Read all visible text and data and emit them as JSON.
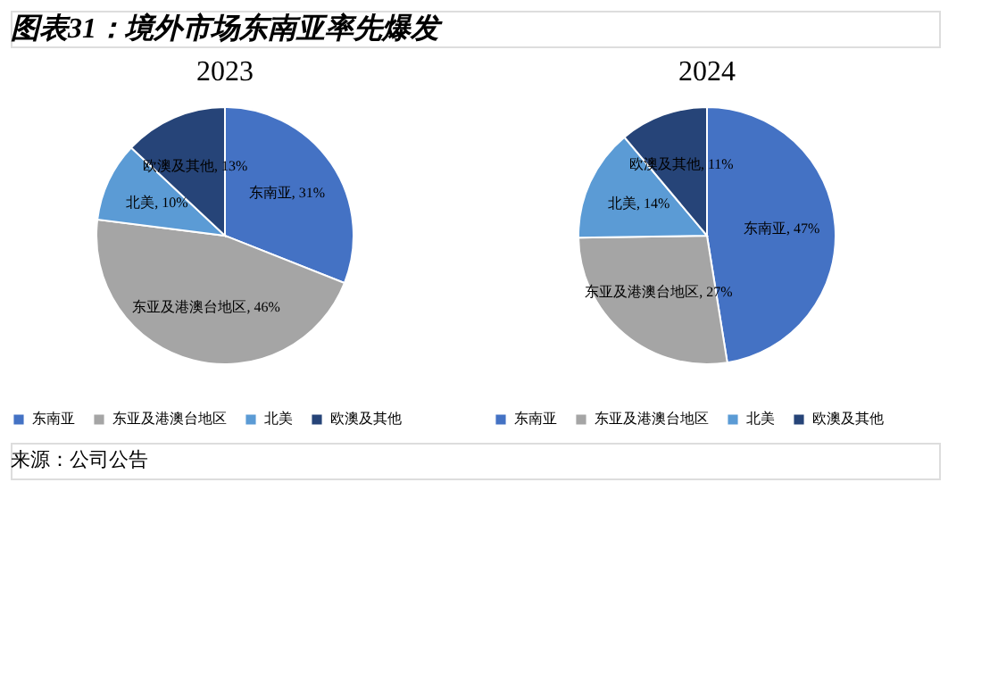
{
  "chart_data": [
    {
      "type": "pie",
      "title": "2023",
      "categories": [
        "东南亚",
        "东亚及港澳台地区",
        "北美",
        "欧澳及其他"
      ],
      "values": [
        31,
        46,
        10,
        13
      ],
      "value_labels": [
        "东南亚, 31%",
        "东亚及港澳台地区, 46%",
        "北美, 10%",
        "欧澳及其他, 13%"
      ],
      "colors": [
        "#4472c4",
        "#a5a5a5",
        "#5b9bd5",
        "#264478"
      ],
      "legend": "bottom",
      "annotations": [
        "图表31：境外市场东南亚率先爆发"
      ]
    },
    {
      "type": "pie",
      "title": "2024",
      "categories": [
        "东南亚",
        "东亚及港澳台地区",
        "北美",
        "欧澳及其他"
      ],
      "values": [
        47,
        27,
        14,
        11
      ],
      "value_labels": [
        "东南亚, 47%",
        "东亚及港澳台地区, 27%",
        "北美, 14%",
        "欧澳及其他, 11%"
      ],
      "colors": [
        "#4472c4",
        "#a5a5a5",
        "#5b9bd5",
        "#264478"
      ],
      "legend": "bottom",
      "annotations": [
        "来源：公司公告"
      ]
    }
  ]
}
